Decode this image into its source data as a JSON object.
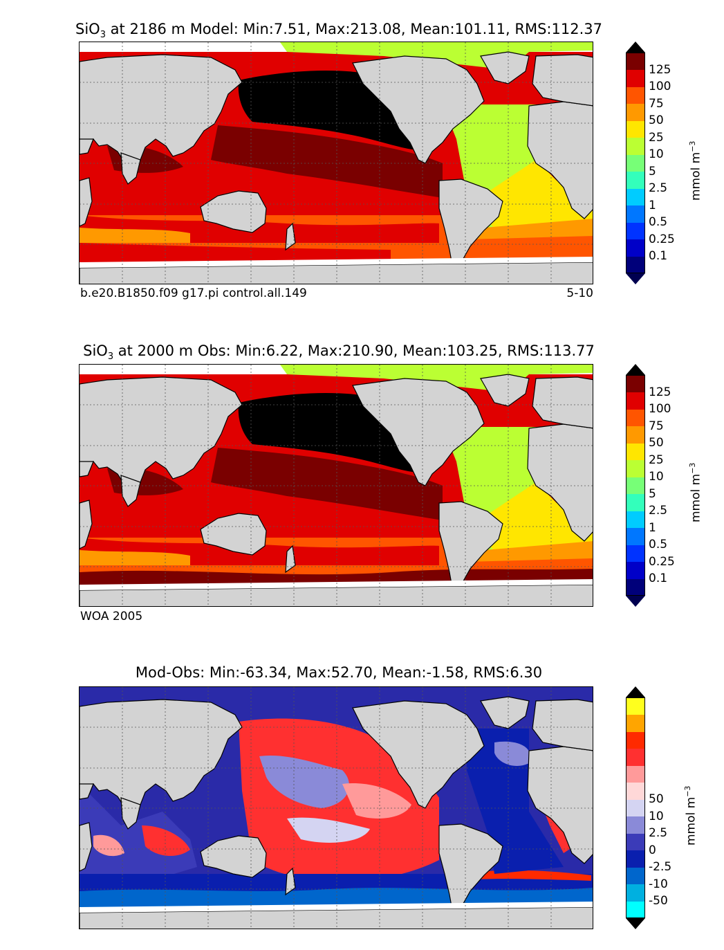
{
  "panels": [
    {
      "title_pre": "SiO",
      "title_sub": "3",
      "title_post": " at 2186 m Model: Min:7.51, Max:213.08, Mean:101.11, RMS:112.37",
      "foot_left": "b.e20.B1850.f09 g17.pi control.all.149",
      "foot_right": "5-10",
      "unit": "mmol m",
      "unit_sup": "−3"
    },
    {
      "title_pre": "SiO",
      "title_sub": "3",
      "title_post": " at 2000 m Obs: Min:6.22, Max:210.90, Mean:103.25, RMS:113.77",
      "foot_left": "WOA 2005",
      "foot_right": "",
      "unit": "mmol m",
      "unit_sup": "−3"
    },
    {
      "title_pre": "Mod-Obs: Min:-63.34, Max:52.70, Mean:-1.58, RMS:6.30",
      "title_sub": "",
      "title_post": "",
      "foot_left": "",
      "foot_right": "",
      "unit": "mmol m",
      "unit_sup": "−3"
    }
  ],
  "colorbar_abs": {
    "ticks": [
      "0.1",
      "0.25",
      "0.5",
      "1",
      "2.5",
      "5",
      "10",
      "25",
      "50",
      "75",
      "100",
      "125"
    ],
    "colors": [
      "#00007a",
      "#0000c8",
      "#0033ff",
      "#0077ff",
      "#00ccff",
      "#33ffbb",
      "#77ff77",
      "#bbff33",
      "#ffe600",
      "#ff9900",
      "#ff5500",
      "#e00000",
      "#7a0000"
    ],
    "under": "#000050",
    "over": "#000000"
  },
  "colorbar_diff": {
    "ticks": [
      "-50",
      "-10",
      "-2.5",
      "0",
      "2.5",
      "10",
      "50"
    ],
    "colors": [
      "#00ffff",
      "#00b0e0",
      "#0066cc",
      "#0a1fae",
      "#3b3bb8",
      "#8a8ad8",
      "#d4d4f2",
      "#ffd8d8",
      "#ff9a9a",
      "#ff3030",
      "#ff2a00",
      "#ffa500",
      "#ffff1e"
    ],
    "under": "#000000",
    "over": "#000000"
  },
  "colors": {
    "land": "#d3d3d3",
    "nodata": "#ffffff",
    "grid": "#555555"
  }
}
